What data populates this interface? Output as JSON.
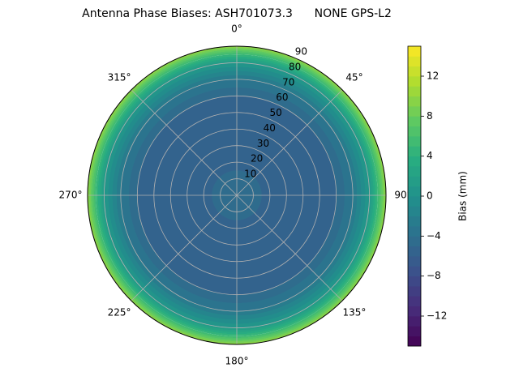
{
  "chart_data": {
    "type": "polar-contour",
    "title": "Antenna Phase Biases: ASH701073.3      NONE GPS-L2",
    "r": [
      0,
      10,
      20,
      30,
      40,
      50,
      60,
      70,
      80,
      85,
      90
    ],
    "values": [
      -4,
      -4.5,
      -5.5,
      -6,
      -6,
      -6,
      -5,
      -3,
      1,
      5,
      10
    ],
    "rlim": [
      0,
      90
    ],
    "rticks": [
      10,
      20,
      30,
      40,
      50,
      60,
      70,
      80,
      90
    ],
    "thetaticks": [
      {
        "value": 0,
        "label": "0°"
      },
      {
        "value": 45,
        "label": "45°"
      },
      {
        "value": 90,
        "label": "90°"
      },
      {
        "value": 135,
        "label": "135°"
      },
      {
        "value": 180,
        "label": "180°"
      },
      {
        "value": 225,
        "label": "225°"
      },
      {
        "value": 270,
        "label": "270°"
      },
      {
        "value": 315,
        "label": "315°"
      }
    ],
    "grid": true,
    "colormap": "viridis",
    "clim": [
      -15,
      15
    ],
    "level_step": 1,
    "colorbar_label": "Bias (mm)",
    "cticks": [
      {
        "value": -12,
        "label": "−12"
      },
      {
        "value": -8,
        "label": "−8"
      },
      {
        "value": -4,
        "label": "−4"
      },
      0,
      4,
      8,
      12
    ]
  }
}
